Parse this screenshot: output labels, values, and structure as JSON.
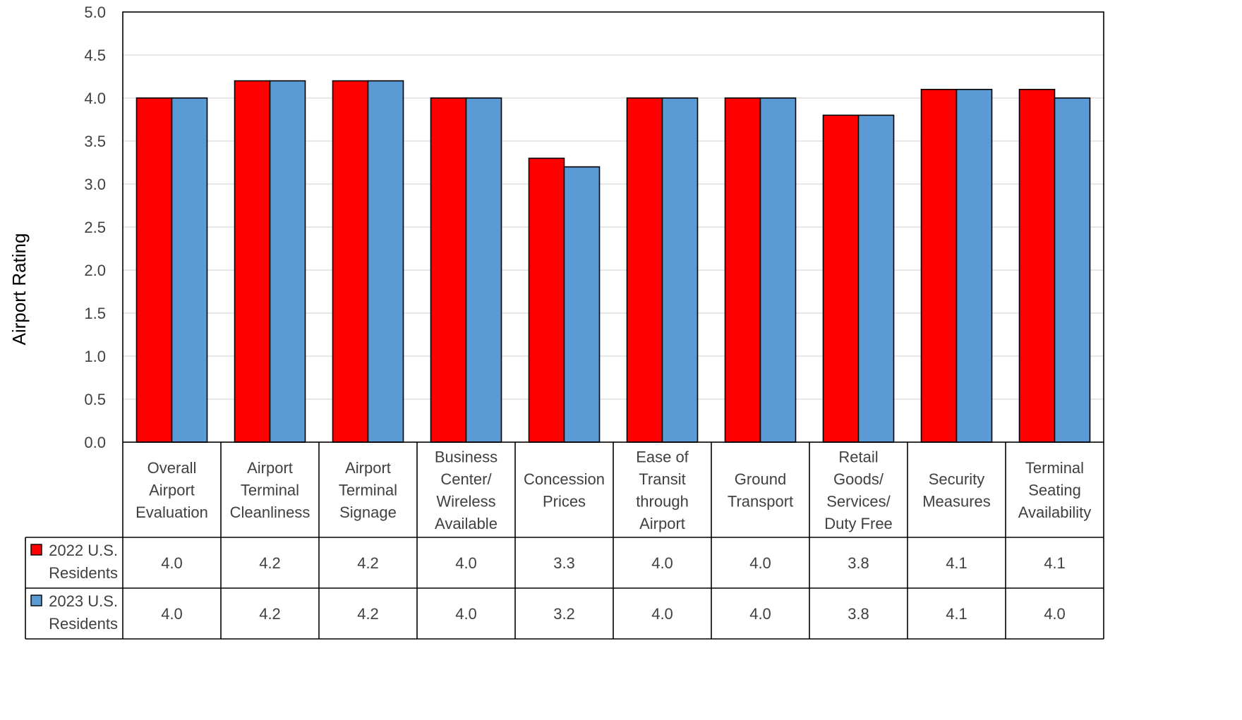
{
  "chart_data": {
    "type": "bar",
    "ylabel": "Airport Rating",
    "ylim": [
      0,
      5.0
    ],
    "yticks": [
      "0.0",
      "0.5",
      "1.0",
      "1.5",
      "2.0",
      "2.5",
      "3.0",
      "3.5",
      "4.0",
      "4.5",
      "5.0"
    ],
    "grid": true,
    "categories": [
      [
        "Overall",
        "Airport",
        "Evaluation"
      ],
      [
        "Airport",
        "Terminal",
        "Cleanliness"
      ],
      [
        "Airport",
        "Terminal",
        "Signage"
      ],
      [
        "Business",
        "Center/",
        "Wireless",
        "Available"
      ],
      [
        "Concession",
        "Prices"
      ],
      [
        "Ease of",
        "Transit",
        "through",
        "Airport"
      ],
      [
        "Ground",
        "Transport"
      ],
      [
        "Retail",
        "Goods/",
        "Services/",
        "Duty Free"
      ],
      [
        "Security",
        "Measures"
      ],
      [
        "Terminal",
        "Seating",
        "Availability"
      ]
    ],
    "series": [
      {
        "name": [
          "2022 U.S.",
          "Residents"
        ],
        "color": "#FF0000",
        "values": [
          4.0,
          4.2,
          4.2,
          4.0,
          3.3,
          4.0,
          4.0,
          3.8,
          4.1,
          4.1
        ],
        "labels": [
          "4.0",
          "4.2",
          "4.2",
          "4.0",
          "3.3",
          "4.0",
          "4.0",
          "3.8",
          "4.1",
          "4.1"
        ]
      },
      {
        "name": [
          "2023 U.S.",
          "Residents"
        ],
        "color": "#5B9BD5",
        "values": [
          4.0,
          4.2,
          4.2,
          4.0,
          3.2,
          4.0,
          4.0,
          3.8,
          4.1,
          4.0
        ],
        "labels": [
          "4.0",
          "4.2",
          "4.2",
          "4.0",
          "3.2",
          "4.0",
          "4.0",
          "3.8",
          "4.1",
          "4.0"
        ]
      }
    ],
    "legend": "data-table"
  }
}
